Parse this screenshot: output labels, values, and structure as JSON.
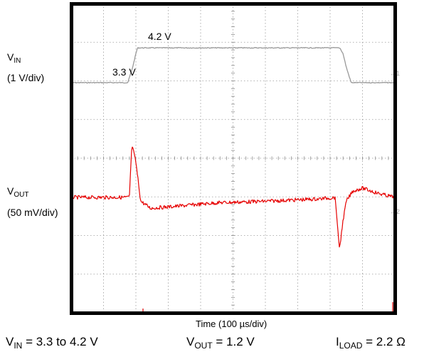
{
  "chart_data": {
    "type": "line",
    "title": "",
    "xlabel": "Time (100 µs/div)",
    "ylabel": "",
    "grid": true,
    "grid_divisions": {
      "x": 10,
      "y": 8
    },
    "x_unit": "µs",
    "x_per_div": 100,
    "xlim": [
      0,
      1000
    ],
    "series": [
      {
        "name": "VIN",
        "color": "#999999",
        "scale": "1 V/div",
        "x": [
          0,
          175,
          190,
          200,
          205,
          830,
          840,
          850,
          865,
          1000
        ],
        "y": [
          3.3,
          3.3,
          3.7,
          4.05,
          4.2,
          4.2,
          4.05,
          3.7,
          3.3,
          3.3
        ]
      },
      {
        "name": "VOUT",
        "color": "#e60000",
        "scale": "50 mV/div",
        "x": [
          0,
          180,
          183,
          188,
          200,
          215,
          245,
          310,
          450,
          600,
          765,
          815,
          820,
          825,
          828,
          833,
          838,
          850,
          870,
          900,
          950,
          1000
        ],
        "y": [
          0,
          0,
          30,
          68,
          45,
          -5,
          -14,
          -12,
          -7,
          -5,
          -2,
          0,
          -20,
          -50,
          -65,
          -55,
          -35,
          -5,
          8,
          12,
          5,
          0
        ]
      }
    ]
  },
  "labels": {
    "vin_name": "V",
    "vin_sub": "IN",
    "vin_scale": "(1 V/div)",
    "vout_name": "V",
    "vout_sub": "OUT",
    "vout_scale": "(50 mV/div)",
    "level_high": "4.2 V",
    "level_low": "3.3 V",
    "time_axis": "Time (100 µs/div)"
  },
  "conditions": {
    "vin_sym": "V",
    "vin_sub": "IN",
    "vin_value": " = 3.3 to 4.2 V",
    "vout_sym": "V",
    "vout_sub": "OUT",
    "vout_value": " = 1.2 V",
    "iload_sym": "I",
    "iload_sub": "LOAD",
    "iload_value": " = 2.2 Ω"
  }
}
